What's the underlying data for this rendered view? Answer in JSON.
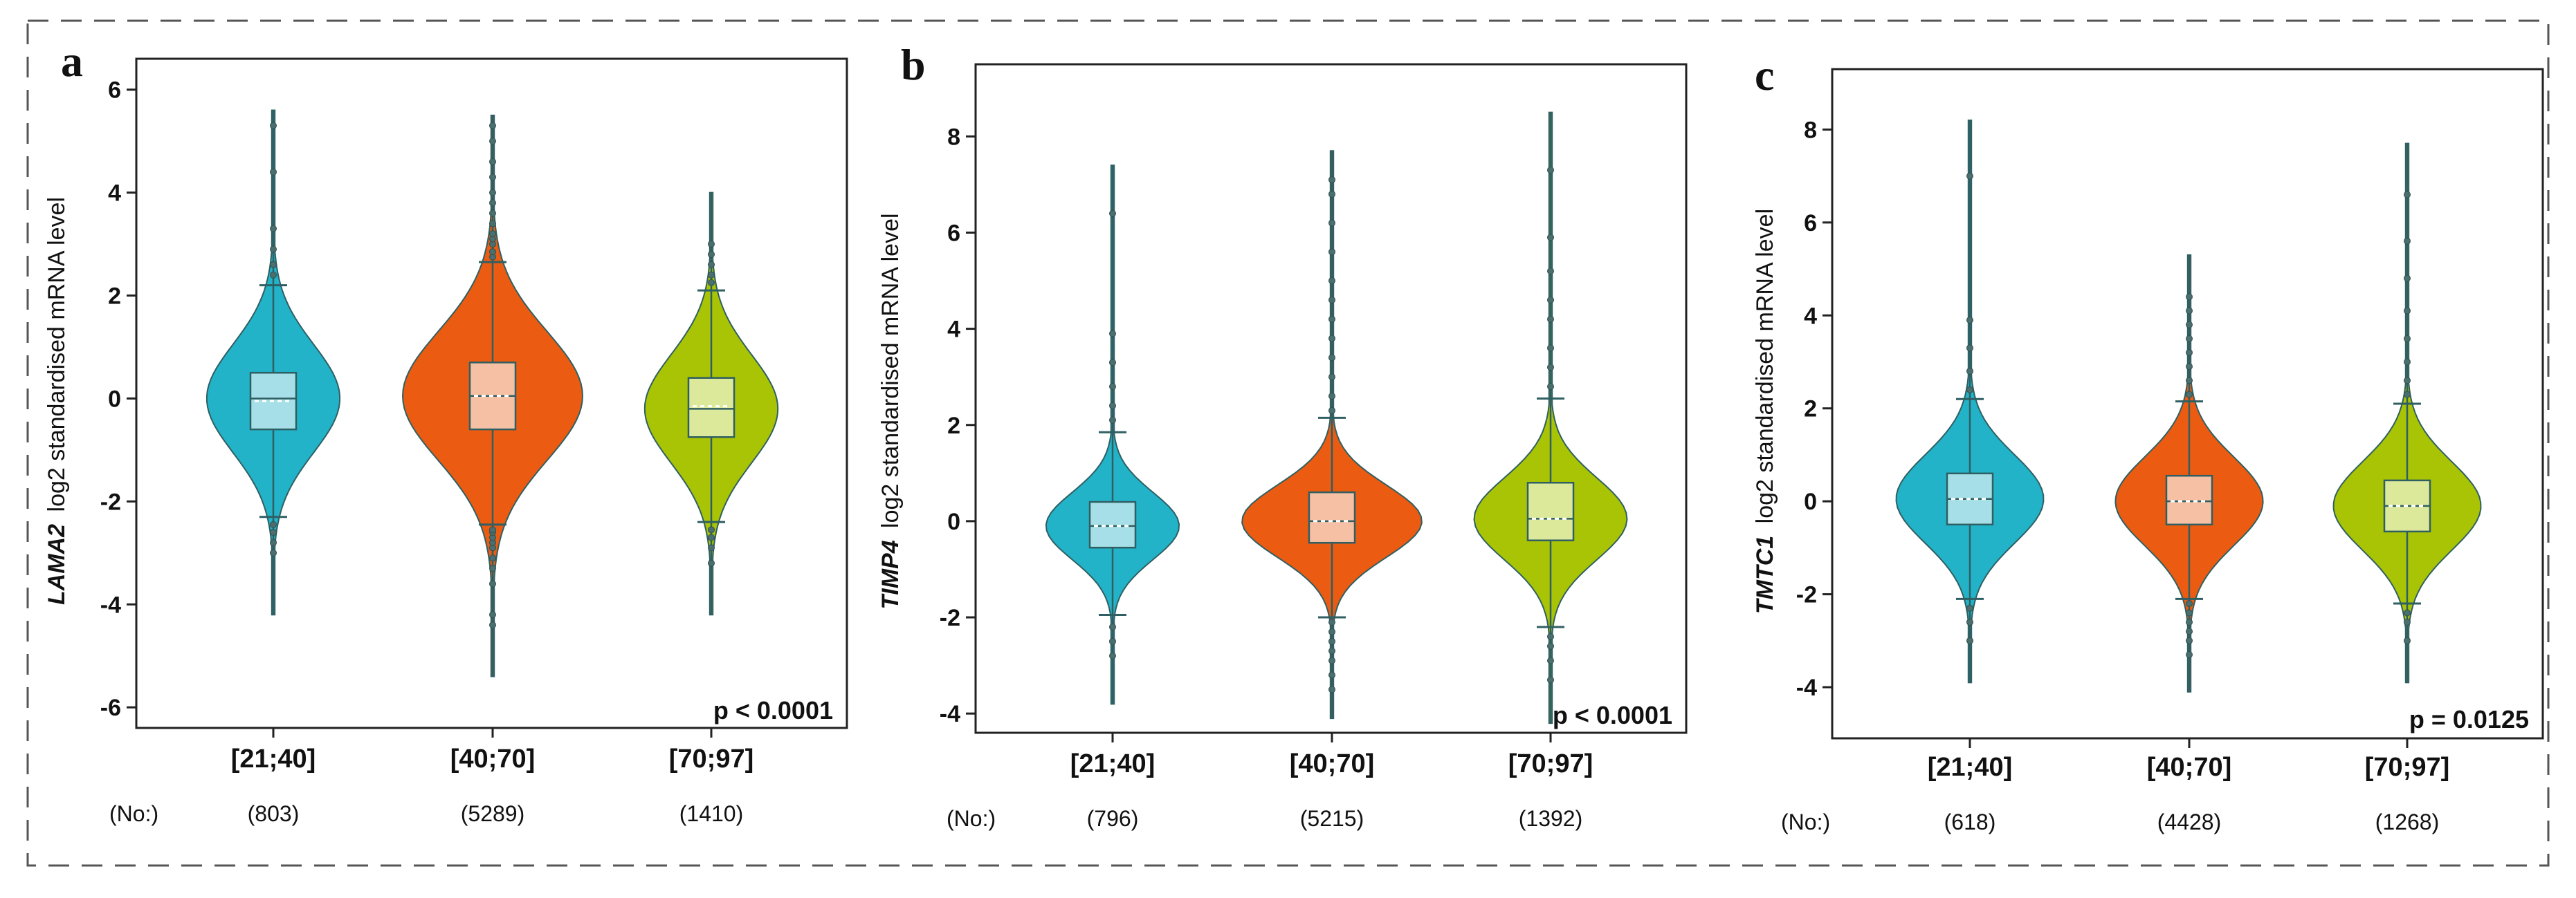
{
  "figure": {
    "count_prefix": "(No:)"
  },
  "chart_data": [
    {
      "type": "violin",
      "panel": "a",
      "gene": "LAMA2",
      "ylabel_suffix": "log2 standardised mRNA level",
      "ylim": [
        -6.4,
        6.6
      ],
      "yticks": [
        -6,
        -4,
        -2,
        0,
        2,
        4,
        6
      ],
      "ytick_labels": [
        "-6",
        "-4",
        "-2",
        "0",
        "2",
        "4",
        "6"
      ],
      "categories": [
        "[21;40]",
        "[40;70]",
        "[70;97]"
      ],
      "counts": [
        "(803)",
        "(5289)",
        "(1410)"
      ],
      "colors": [
        "#22b3c9",
        "#eb5b12",
        "#a8c404"
      ],
      "box_colors": [
        "#a6dfe8",
        "#f6c0a4",
        "#dde99a"
      ],
      "p_value": "p < 0.0001",
      "series": [
        {
          "name": "[21;40]",
          "median": 0.0,
          "mean": -0.05,
          "q1": -0.6,
          "q3": 0.5,
          "whisker_low": -2.3,
          "whisker_high": 2.2,
          "min": -4.2,
          "max": 5.6,
          "width": 0.74,
          "spread": 1.05,
          "outliers": [
            -3.0,
            -2.8,
            -2.6,
            -2.45,
            2.4,
            2.6,
            2.9,
            3.3,
            4.4,
            5.3
          ]
        },
        {
          "name": "[40;70]",
          "median": 0.05,
          "mean": 0.05,
          "q1": -0.6,
          "q3": 0.7,
          "whisker_low": -2.45,
          "whisker_high": 2.65,
          "min": -5.4,
          "max": 5.5,
          "width": 1.0,
          "spread": 1.25,
          "outliers": [
            -4.4,
            -4.2,
            -3.6,
            -3.3,
            -3.1,
            -2.9,
            -2.8,
            -2.7,
            -2.6,
            -2.55,
            2.75,
            2.85,
            3.0,
            3.1,
            3.2,
            3.4,
            3.6,
            3.8,
            4.0,
            4.3,
            4.6,
            5.0,
            5.3
          ]
        },
        {
          "name": "[70;97]",
          "median": -0.2,
          "mean": -0.15,
          "q1": -0.75,
          "q3": 0.4,
          "whisker_low": -2.4,
          "whisker_high": 2.1,
          "min": -4.2,
          "max": 4.0,
          "width": 0.74,
          "spread": 1.05,
          "outliers": [
            -3.2,
            -2.9,
            -2.7,
            -2.55,
            2.25,
            2.4,
            2.6,
            2.8,
            3.0
          ]
        }
      ]
    },
    {
      "type": "violin",
      "panel": "b",
      "gene": "TIMP4",
      "ylabel_suffix": "log2 standardised mRNA level",
      "ylim": [
        -4.4,
        9.5
      ],
      "yticks": [
        -4,
        -2,
        0,
        2,
        4,
        6,
        8
      ],
      "ytick_labels": [
        "-4",
        "-2",
        "0",
        "2",
        "4",
        "6",
        "8"
      ],
      "categories": [
        "[21;40]",
        "[40;70]",
        "[70;97]"
      ],
      "counts": [
        "(796)",
        "(5215)",
        "(1392)"
      ],
      "colors": [
        "#22b3c9",
        "#eb5b12",
        "#a8c404"
      ],
      "box_colors": [
        "#a6dfe8",
        "#f6c0a4",
        "#dde99a"
      ],
      "p_value": "p < 0.0001",
      "series": [
        {
          "name": "[21;40]",
          "median": -0.1,
          "mean": -0.1,
          "q1": -0.55,
          "q3": 0.4,
          "whisker_low": -1.95,
          "whisker_high": 1.85,
          "min": -3.8,
          "max": 7.4,
          "width": 0.74,
          "spread": 0.7,
          "outliers": [
            -2.8,
            -2.5,
            -2.2,
            2.1,
            2.4,
            2.8,
            3.3,
            3.9,
            6.4
          ]
        },
        {
          "name": "[40;70]",
          "median": 0.0,
          "mean": 0.0,
          "q1": -0.45,
          "q3": 0.6,
          "whisker_low": -2.0,
          "whisker_high": 2.15,
          "min": -4.1,
          "max": 7.7,
          "width": 1.0,
          "spread": 0.75,
          "outliers": [
            -3.5,
            -3.2,
            -2.9,
            -2.7,
            -2.5,
            -2.3,
            -2.1,
            2.3,
            2.6,
            3.0,
            3.4,
            3.8,
            4.2,
            4.6,
            5.0,
            5.6,
            6.2,
            6.8,
            7.1
          ]
        },
        {
          "name": "[70;97]",
          "median": 0.05,
          "mean": 0.05,
          "q1": -0.4,
          "q3": 0.8,
          "whisker_low": -2.2,
          "whisker_high": 2.55,
          "min": -4.2,
          "max": 8.5,
          "width": 0.85,
          "spread": 0.85,
          "outliers": [
            -3.3,
            -2.9,
            -2.6,
            -2.4,
            2.8,
            3.2,
            3.6,
            4.2,
            4.6,
            5.2,
            5.9,
            7.3
          ]
        }
      ]
    },
    {
      "type": "violin",
      "panel": "c",
      "gene": "TMTC1",
      "ylabel_suffix": "log2 standardised mRNA level",
      "ylim": [
        -5.1,
        9.3
      ],
      "yticks": [
        -4,
        -2,
        0,
        2,
        4,
        6,
        8
      ],
      "ytick_labels": [
        "-4",
        "-2",
        "0",
        "2",
        "4",
        "6",
        "8"
      ],
      "categories": [
        "[21;40]",
        "[40;70]",
        "[70;97]"
      ],
      "counts": [
        "(618)",
        "(4428)",
        "(1268)"
      ],
      "colors": [
        "#22b3c9",
        "#eb5b12",
        "#a8c404"
      ],
      "box_colors": [
        "#a6dfe8",
        "#f6c0a4",
        "#dde99a"
      ],
      "p_value": "p = 0.0125",
      "series": [
        {
          "name": "[21;40]",
          "median": 0.05,
          "mean": 0.05,
          "q1": -0.5,
          "q3": 0.6,
          "whisker_low": -2.1,
          "whisker_high": 2.2,
          "min": -3.9,
          "max": 8.2,
          "width": 0.82,
          "spread": 0.95,
          "outliers": [
            -3.0,
            -2.6,
            -2.3,
            2.4,
            2.8,
            3.3,
            3.9,
            7.0
          ]
        },
        {
          "name": "[40;70]",
          "median": 0.0,
          "mean": 0.0,
          "q1": -0.5,
          "q3": 0.55,
          "whisker_low": -2.1,
          "whisker_high": 2.15,
          "min": -4.1,
          "max": 5.3,
          "width": 0.82,
          "spread": 0.95,
          "outliers": [
            -3.3,
            -3.0,
            -2.8,
            -2.6,
            -2.4,
            -2.2,
            2.3,
            2.6,
            2.9,
            3.2,
            3.5,
            3.8,
            4.1,
            4.4
          ]
        },
        {
          "name": "[70;97]",
          "median": -0.1,
          "mean": -0.1,
          "q1": -0.65,
          "q3": 0.45,
          "whisker_low": -2.2,
          "whisker_high": 2.1,
          "min": -3.9,
          "max": 7.7,
          "width": 0.82,
          "spread": 0.95,
          "outliers": [
            -3.0,
            -2.6,
            -2.4,
            2.3,
            2.6,
            3.0,
            3.5,
            4.1,
            4.8,
            5.6,
            6.6
          ]
        }
      ]
    }
  ]
}
